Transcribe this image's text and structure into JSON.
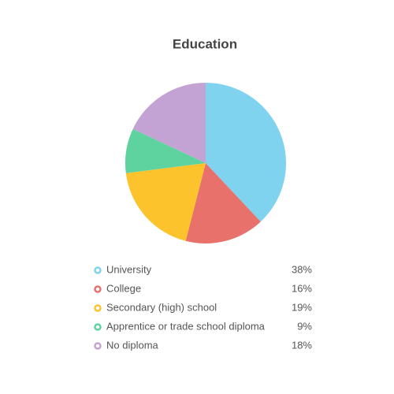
{
  "chart_data": {
    "type": "pie",
    "title": "Education",
    "categories": [
      "University",
      "College",
      "Secondary (high) school",
      "Apprentice or trade school diploma",
      "No diploma"
    ],
    "values": [
      38,
      16,
      19,
      9,
      18
    ],
    "value_labels": [
      "38%",
      "16%",
      "19%",
      "9%",
      "18%"
    ],
    "colors": [
      "#7fd3ee",
      "#e8716b",
      "#fcc32d",
      "#5fd39f",
      "#c2a3d3"
    ]
  }
}
